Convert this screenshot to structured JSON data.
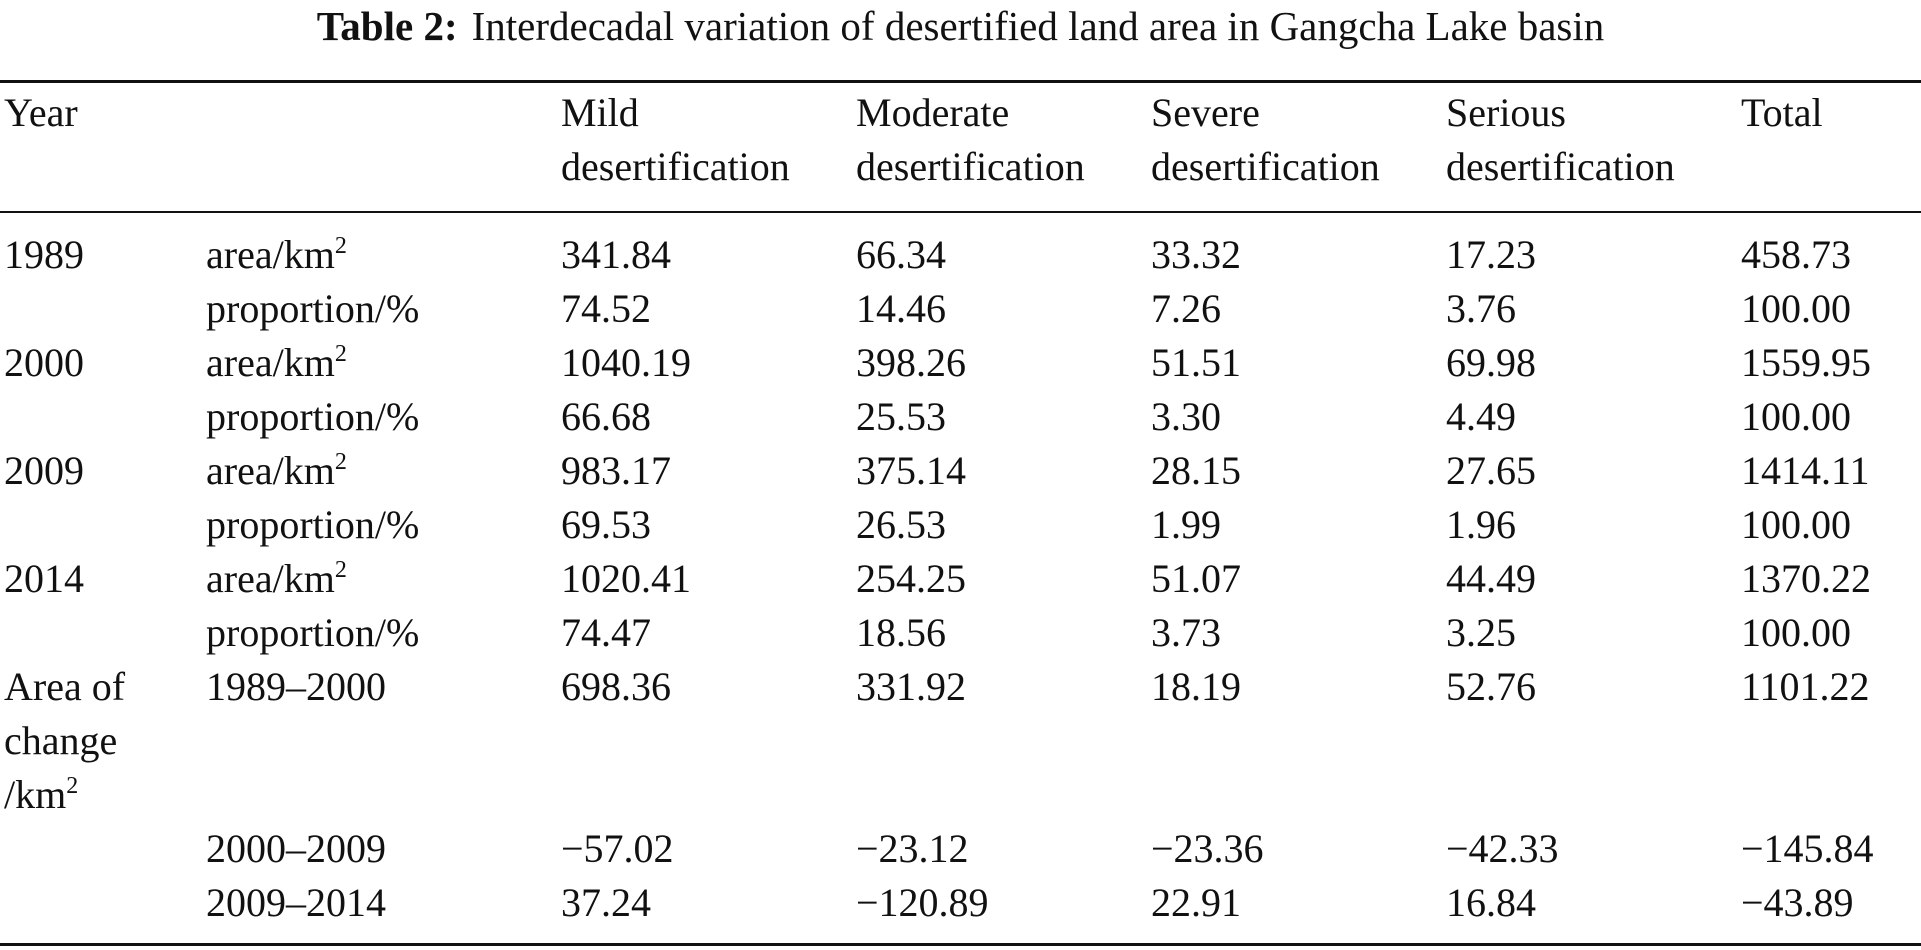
{
  "caption": {
    "label": "Table 2:",
    "text": "Interdecadal variation of desertified land area in Gangcha Lake basin"
  },
  "header": {
    "year": "Year",
    "cols": [
      {
        "line1": "Mild",
        "line2": "desertification"
      },
      {
        "line1": "Moderate",
        "line2": "desertification"
      },
      {
        "line1": "Severe",
        "line2": "desertification"
      },
      {
        "line1": "Serious",
        "line2": "desertification"
      },
      {
        "line1": "Total",
        "line2": ""
      }
    ]
  },
  "units": {
    "area_prefix": "area/km",
    "area_sup": "2",
    "proportion": "proportion/%"
  },
  "rows": [
    {
      "year": "1989",
      "area": [
        "341.84",
        "66.34",
        "33.32",
        "17.23",
        "458.73"
      ],
      "proportion": [
        "74.52",
        "14.46",
        "7.26",
        "3.76",
        "100.00"
      ]
    },
    {
      "year": "2000",
      "area": [
        "1040.19",
        "398.26",
        "51.51",
        "69.98",
        "1559.95"
      ],
      "proportion": [
        "66.68",
        "25.53",
        "3.30",
        "4.49",
        "100.00"
      ]
    },
    {
      "year": "2009",
      "area": [
        "983.17",
        "375.14",
        "28.15",
        "27.65",
        "1414.11"
      ],
      "proportion": [
        "69.53",
        "26.53",
        "1.99",
        "1.96",
        "100.00"
      ]
    },
    {
      "year": "2014",
      "area": [
        "1020.41",
        "254.25",
        "51.07",
        "44.49",
        "1370.22"
      ],
      "proportion": [
        "74.47",
        "18.56",
        "3.73",
        "3.25",
        "100.00"
      ]
    }
  ],
  "change": {
    "label_line1": "Area of",
    "label_line2": "change",
    "label_line3_prefix": "/km",
    "label_line3_sup": "2",
    "rows": [
      {
        "period": "1989–2000",
        "values": [
          "698.36",
          "331.92",
          "18.19",
          "52.76",
          "1101.22"
        ]
      },
      {
        "period": "2000–2009",
        "values": [
          "−57.02",
          "−23.12",
          "−23.36",
          "−42.33",
          "−145.84"
        ]
      },
      {
        "period": "2009–2014",
        "values": [
          "37.24",
          "−120.89",
          "22.91",
          "16.84",
          "−43.89"
        ]
      }
    ]
  }
}
